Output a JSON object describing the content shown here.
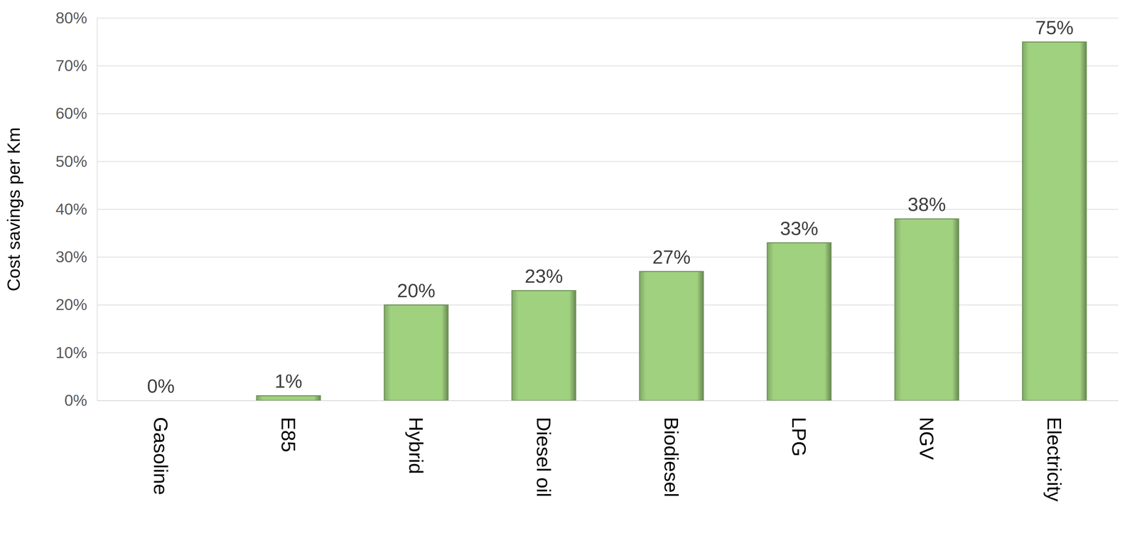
{
  "chart_data": {
    "type": "bar",
    "y_label": "Cost savings per Km",
    "categories": [
      "Gasoline",
      "E85",
      "Hybrid",
      "Diesel oil",
      "Biodiesel",
      "LPG",
      "NGV",
      "Electricity"
    ],
    "values": [
      0,
      1,
      20,
      23,
      27,
      33,
      38,
      75
    ],
    "value_labels": [
      "0%",
      "1%",
      "20%",
      "23%",
      "27%",
      "33%",
      "38%",
      "75%"
    ],
    "color": "#9fd17e",
    "ylim": [
      0,
      80
    ],
    "yticks": [
      {
        "value": 0,
        "label": "0%"
      },
      {
        "value": 10,
        "label": "10%"
      },
      {
        "value": 20,
        "label": "20%"
      },
      {
        "value": 30,
        "label": "30%"
      },
      {
        "value": 40,
        "label": "40%"
      },
      {
        "value": 50,
        "label": "50%"
      },
      {
        "value": 60,
        "label": "60%"
      },
      {
        "value": 70,
        "label": "70%"
      },
      {
        "value": 80,
        "label": "80%"
      }
    ],
    "grid": true,
    "data_labels": true
  }
}
